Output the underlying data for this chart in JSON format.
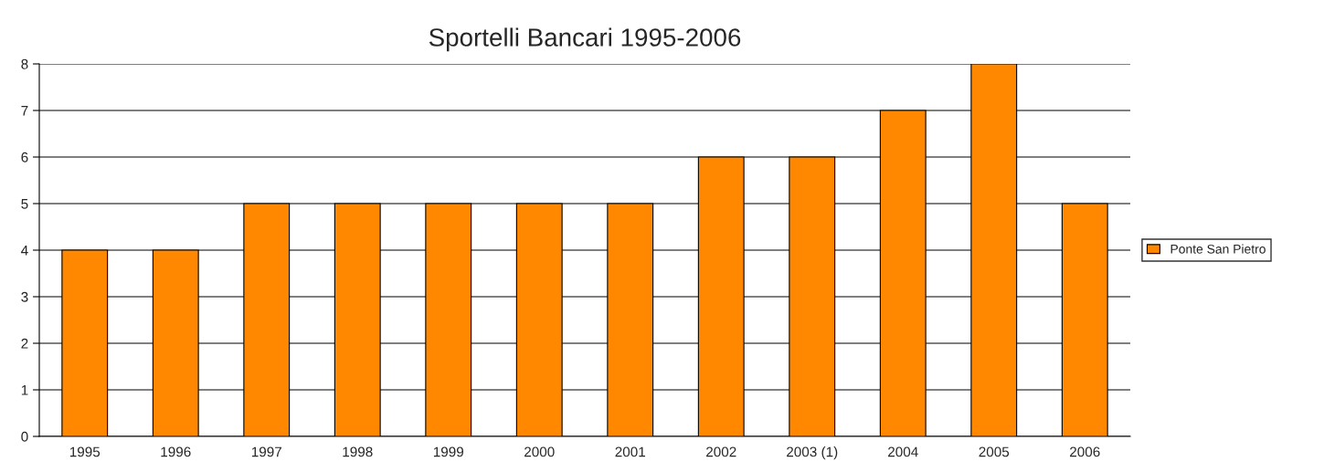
{
  "chart_data": {
    "type": "bar",
    "title": "Sportelli Bancari 1995-2006",
    "categories": [
      "1995",
      "1996",
      "1997",
      "1998",
      "1999",
      "2000",
      "2001",
      "2002",
      "2003 (1)",
      "2004",
      "2005",
      "2006"
    ],
    "series": [
      {
        "name": "Ponte San Pietro",
        "color": "#ff8800",
        "values": [
          4,
          4,
          5,
          5,
          5,
          5,
          5,
          6,
          6,
          7,
          8,
          5
        ]
      }
    ],
    "ylim": [
      0,
      8
    ],
    "yticks": [
      0,
      1,
      2,
      3,
      4,
      5,
      6,
      7,
      8
    ],
    "grid": "y",
    "legend": "right"
  }
}
